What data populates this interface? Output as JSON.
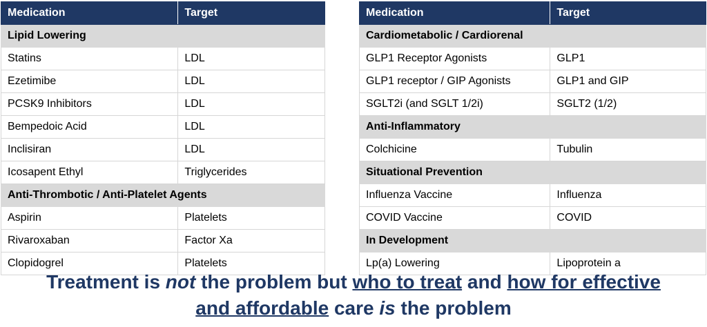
{
  "left_table": {
    "headers": [
      "Medication",
      "Target"
    ],
    "rows": [
      {
        "type": "section",
        "label": "Lipid Lowering"
      },
      {
        "type": "row",
        "medication": "Statins",
        "target": "LDL"
      },
      {
        "type": "row",
        "medication": "Ezetimibe",
        "target": "LDL"
      },
      {
        "type": "row",
        "medication": "PCSK9 Inhibitors",
        "target": "LDL"
      },
      {
        "type": "row",
        "medication": "Bempedoic Acid",
        "target": "LDL"
      },
      {
        "type": "row",
        "medication": "Inclisiran",
        "target": "LDL"
      },
      {
        "type": "row",
        "medication": "Icosapent Ethyl",
        "target": "Triglycerides"
      },
      {
        "type": "section",
        "label": "Anti-Thrombotic / Anti-Platelet Agents"
      },
      {
        "type": "row",
        "medication": "Aspirin",
        "target": "Platelets"
      },
      {
        "type": "row",
        "medication": "Rivaroxaban",
        "target": "Factor Xa"
      },
      {
        "type": "row",
        "medication": "Clopidogrel",
        "target": "Platelets"
      }
    ]
  },
  "right_table": {
    "headers": [
      "Medication",
      "Target"
    ],
    "rows": [
      {
        "type": "section",
        "label": "Cardiometabolic / Cardiorenal"
      },
      {
        "type": "row",
        "medication": "GLP1 Receptor Agonists",
        "target": "GLP1"
      },
      {
        "type": "row",
        "medication": "GLP1 receptor / GIP Agonists",
        "target": "GLP1 and GIP"
      },
      {
        "type": "row",
        "medication": "SGLT2i (and SGLT 1/2i)",
        "target": "SGLT2 (1/2)"
      },
      {
        "type": "section",
        "label": "Anti-Inflammatory"
      },
      {
        "type": "row",
        "medication": "Colchicine",
        "target": "Tubulin"
      },
      {
        "type": "section",
        "label": "Situational Prevention"
      },
      {
        "type": "row",
        "medication": "Influenza Vaccine",
        "target": "Influenza"
      },
      {
        "type": "row",
        "medication": "COVID Vaccine",
        "target": "COVID"
      },
      {
        "type": "section",
        "label": "In Development"
      },
      {
        "type": "row",
        "medication": "Lp(a) Lowering",
        "target": "Lipoprotein a"
      }
    ]
  },
  "caption": {
    "parts": [
      {
        "text": "Treatment is ",
        "style": ""
      },
      {
        "text": "not",
        "style": "i"
      },
      {
        "text": " the problem but ",
        "style": ""
      },
      {
        "text": "who to treat",
        "style": "u"
      },
      {
        "text": " and ",
        "style": ""
      },
      {
        "text": "how for effective",
        "style": "u"
      },
      {
        "text": "\n",
        "style": "br"
      },
      {
        "text": "and affordable",
        "style": "u"
      },
      {
        "text": " care ",
        "style": ""
      },
      {
        "text": "is",
        "style": "i"
      },
      {
        "text": " the problem",
        "style": ""
      }
    ]
  },
  "colors": {
    "header_bg": "#1f3864",
    "section_bg": "#d9d9d9",
    "caption_text": "#1f3864"
  }
}
